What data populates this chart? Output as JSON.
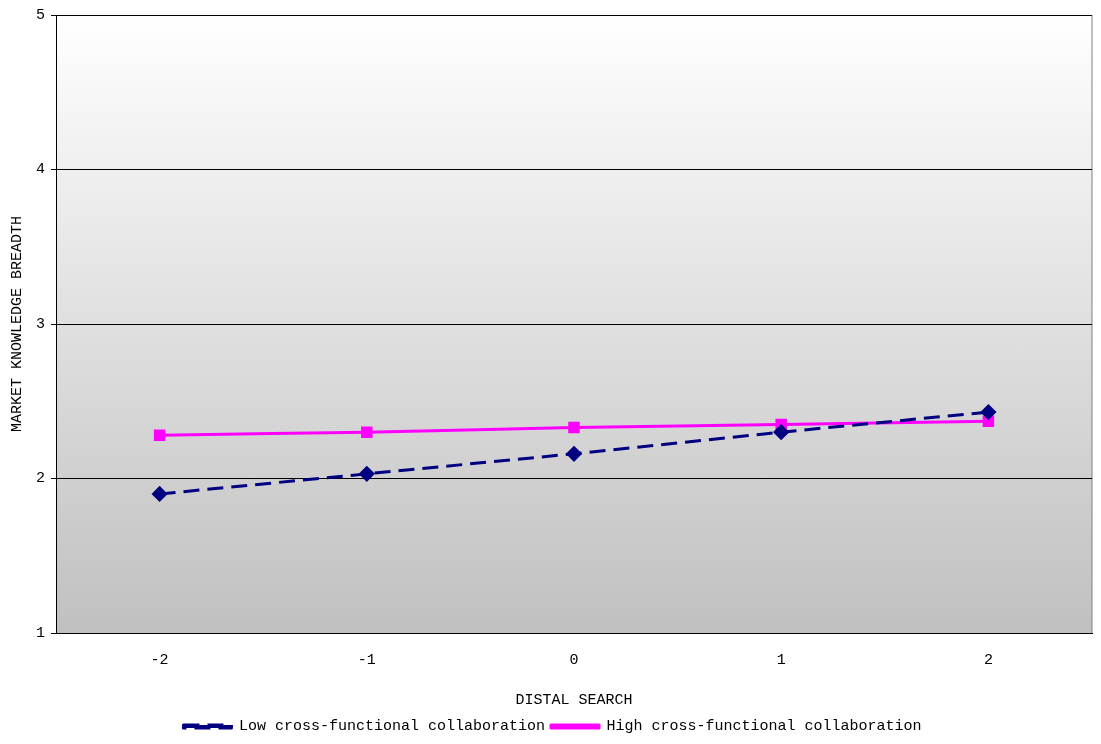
{
  "chart_data": {
    "type": "line",
    "xlabel": "DISTAL SEARCH",
    "ylabel": "MARKET KNOWLEDGE BREADTH",
    "categories": [
      "-2",
      "-1",
      "0",
      "1",
      "2"
    ],
    "series": [
      {
        "name": "Low cross-functional collaboration",
        "color": "#000080",
        "marker": "diamond",
        "line_style": "dashed",
        "values": [
          1.9,
          2.03,
          2.16,
          2.3,
          2.43
        ]
      },
      {
        "name": "High cross-functional collaboration",
        "color": "#ff00ff",
        "marker": "square",
        "line_style": "solid",
        "values": [
          2.28,
          2.3,
          2.33,
          2.35,
          2.37
        ]
      }
    ],
    "ylim": [
      1,
      5
    ],
    "yticks": [
      1,
      2,
      3,
      4,
      5
    ],
    "grid": "y",
    "legend": "bottom"
  }
}
